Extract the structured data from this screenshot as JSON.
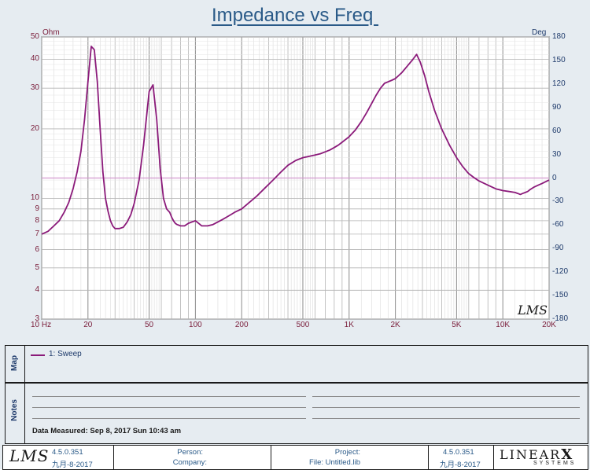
{
  "title": "Impedance vs Freq ",
  "chart_data": {
    "type": "line",
    "title": "Impedance vs Freq ",
    "left_axis_unit": "Ohm",
    "right_axis_unit": "Deg",
    "x_scale": "log",
    "y_scale": "log",
    "xlim": [
      10,
      20000
    ],
    "ylim": [
      3,
      50
    ],
    "y2lim": [
      -180,
      180
    ],
    "grid": true,
    "x_ticks": [
      {
        "value": 10,
        "label": "10  Hz"
      },
      {
        "value": 20,
        "label": "20"
      },
      {
        "value": 50,
        "label": "50"
      },
      {
        "value": 100,
        "label": "100"
      },
      {
        "value": 200,
        "label": "200"
      },
      {
        "value": 500,
        "label": "500"
      },
      {
        "value": 1000,
        "label": "1K"
      },
      {
        "value": 2000,
        "label": "2K"
      },
      {
        "value": 5000,
        "label": "5K"
      },
      {
        "value": 10000,
        "label": "10K"
      },
      {
        "value": 20000,
        "label": "20K"
      }
    ],
    "y_ticks": [
      {
        "value": 50,
        "label": "50"
      },
      {
        "value": 40,
        "label": "40"
      },
      {
        "value": 30,
        "label": "30"
      },
      {
        "value": 20,
        "label": "20"
      },
      {
        "value": 10,
        "label": "10"
      },
      {
        "value": 9,
        "label": "9"
      },
      {
        "value": 8,
        "label": "8"
      },
      {
        "value": 7,
        "label": "7"
      },
      {
        "value": 6,
        "label": "6"
      },
      {
        "value": 5,
        "label": "5"
      },
      {
        "value": 4,
        "label": "4"
      },
      {
        "value": 3,
        "label": "3"
      }
    ],
    "y2_ticks": [
      180,
      150,
      120,
      90,
      60,
      30,
      0,
      -30,
      -60,
      -90,
      -120,
      -150,
      -180
    ],
    "phase_zero_line": true,
    "series": [
      {
        "name": "1: Sweep",
        "color": "#8b1a7a",
        "x": [
          10,
          11,
          12,
          13,
          14,
          15,
          16,
          17,
          18,
          19,
          20,
          21,
          22,
          23,
          24,
          25,
          26,
          27,
          28,
          29,
          30,
          32,
          34,
          36,
          38,
          40,
          43,
          46,
          50,
          53,
          56,
          59,
          62,
          65,
          68,
          70,
          72,
          74,
          76,
          80,
          85,
          90,
          95,
          100,
          110,
          120,
          130,
          140,
          150,
          160,
          170,
          180,
          200,
          220,
          250,
          280,
          320,
          360,
          400,
          450,
          500,
          550,
          600,
          650,
          700,
          750,
          800,
          850,
          900,
          950,
          1000,
          1100,
          1200,
          1300,
          1400,
          1500,
          1600,
          1700,
          1800,
          1900,
          2000,
          2200,
          2400,
          2600,
          2750,
          2900,
          3100,
          3300,
          3600,
          4000,
          4500,
          5000,
          5500,
          6000,
          6500,
          7000,
          8000,
          9000,
          10000,
          11000,
          12000,
          12500,
          13000,
          13500,
          14000,
          14500,
          15000,
          16000,
          17000,
          18000,
          19000,
          20000
        ],
        "values": [
          7.0,
          7.2,
          7.6,
          8.0,
          8.7,
          9.6,
          11.0,
          13.0,
          16.0,
          22.0,
          32.0,
          45.5,
          44.0,
          32.0,
          20.0,
          13.0,
          10.0,
          8.8,
          8.0,
          7.6,
          7.4,
          7.4,
          7.5,
          7.9,
          8.5,
          9.5,
          12.0,
          17.0,
          29.0,
          31.0,
          22.0,
          13.5,
          10.0,
          9.0,
          8.7,
          8.3,
          8.0,
          7.8,
          7.7,
          7.6,
          7.6,
          7.8,
          7.9,
          8.0,
          7.6,
          7.6,
          7.7,
          7.9,
          8.1,
          8.3,
          8.5,
          8.7,
          9.0,
          9.5,
          10.2,
          11.0,
          12.0,
          13.0,
          13.9,
          14.6,
          15.0,
          15.2,
          15.4,
          15.6,
          15.9,
          16.2,
          16.6,
          17.0,
          17.5,
          18.0,
          18.5,
          19.8,
          21.5,
          23.5,
          25.7,
          28.0,
          30.0,
          31.5,
          32.0,
          32.5,
          33.0,
          35.0,
          37.5,
          40.0,
          42.0,
          39.0,
          34.0,
          29.0,
          24.0,
          20.0,
          17.0,
          15.0,
          13.7,
          12.8,
          12.3,
          11.9,
          11.4,
          11.0,
          10.8,
          10.7,
          10.6,
          10.5,
          10.4,
          10.5,
          10.6,
          10.7,
          10.9,
          11.2,
          11.4,
          11.6,
          11.8,
          12.0
        ]
      }
    ]
  },
  "watermark": "LMS",
  "legend": {
    "side_label": "Map",
    "entries": [
      {
        "label": "1: Sweep",
        "color": "#8b1a7a"
      }
    ]
  },
  "notes": {
    "side_label": "Notes",
    "data_measured": "Data Measured: Sep 8, 2017  Sun 10:43 am"
  },
  "footer": {
    "logo": "LMS",
    "version": "4.5.0.351",
    "date": "九月-8-2017",
    "person_label": "Person:",
    "company_label": "Company:",
    "project_label": "Project:",
    "file_label": "File: Untitled.lib",
    "version_right": "4.5.0.351",
    "date_right": "九月-8-2017",
    "brand": "LINEAR",
    "brand_x": "X",
    "brand_sub": "SYSTEMS"
  }
}
